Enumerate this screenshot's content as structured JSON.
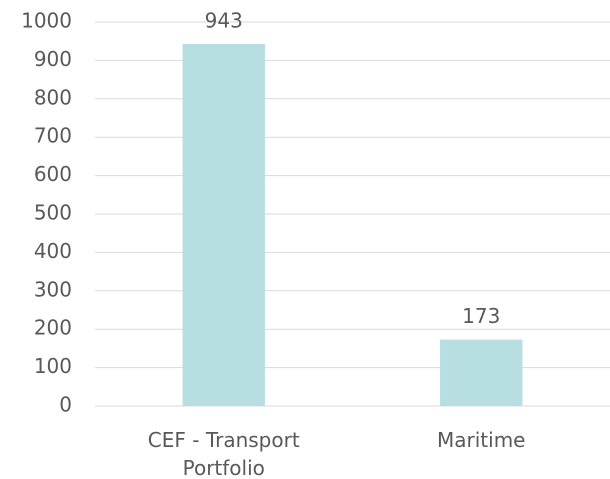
{
  "chart_data": {
    "type": "bar",
    "categories": [
      "CEF - Transport Portfolio",
      "Maritime"
    ],
    "values": [
      943,
      173
    ],
    "color": "#b7dfe2",
    "ylim": [
      0,
      1000
    ],
    "yticks": [
      0,
      100,
      200,
      300,
      400,
      500,
      600,
      700,
      800,
      900,
      1000
    ],
    "grid": true
  }
}
